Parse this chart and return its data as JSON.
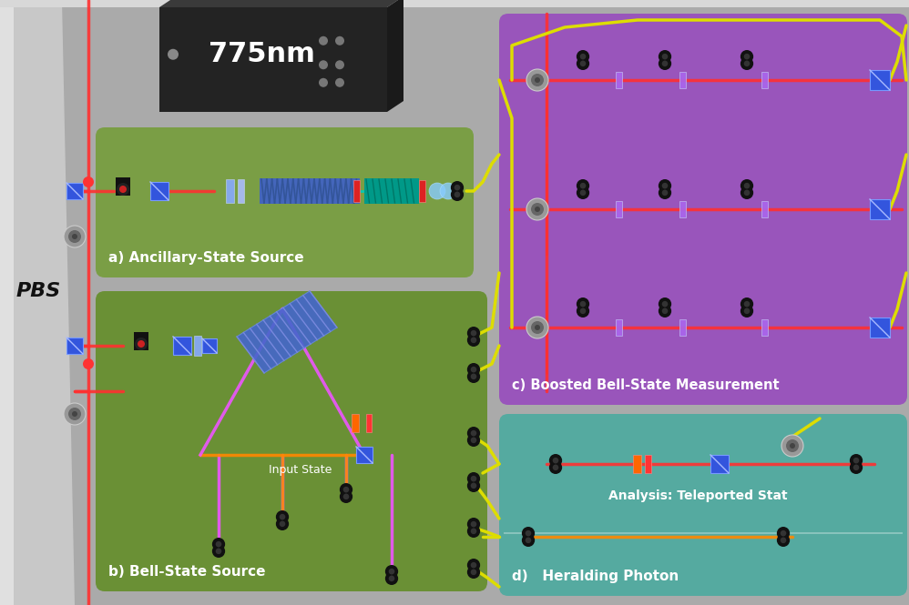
{
  "bg_color": "#aaaaaa",
  "left_panel_color": "#c5c5c5",
  "panel_a_color": "#7a9e45",
  "panel_b_color": "#6a9035",
  "panel_c_color": "#9955bb",
  "panel_d_color": "#55aaa0",
  "label_color": "#ffffff",
  "laser_box_color": "#252525",
  "laser_text": "775nm",
  "label_a": "a) Ancillary-State Source",
  "label_b": "b) Bell-State Source",
  "label_c": "c) Boosted Bell-State Measurement",
  "label_d": "d)   Heralding Photon",
  "label_d2": "Analysis: Teleported Stat",
  "label_pbs": "PBS",
  "fiber_color": "#dddd00",
  "red_beam": "#ff3030",
  "pink_beam": "#ee55ff",
  "orange_beam": "#ff8800",
  "cyan_beam": "#00ccbb",
  "blue_cube": "#3355dd"
}
